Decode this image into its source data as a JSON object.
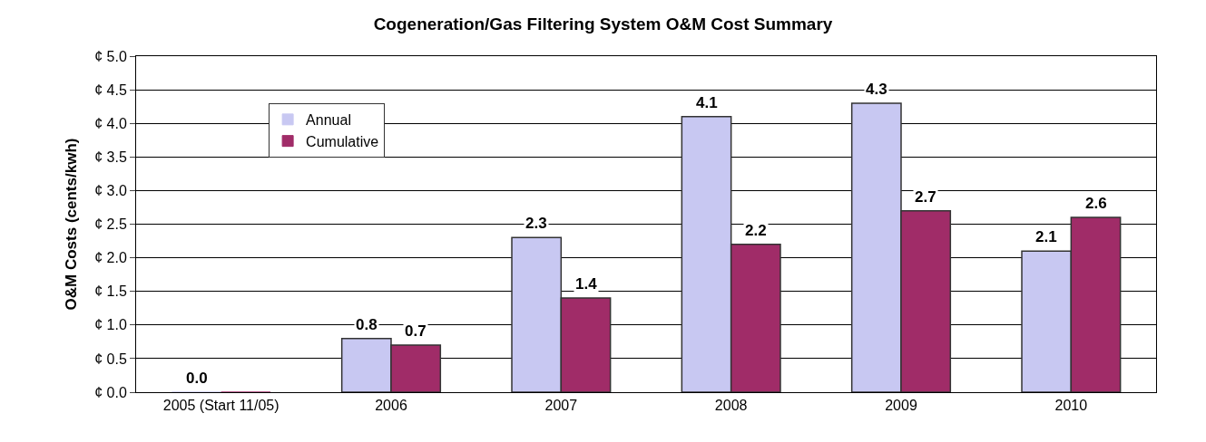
{
  "chart_data": {
    "type": "bar",
    "title": "Cogeneration/Gas Filtering System O&M Cost Summary",
    "ylabel": "O&M Costs (cents/kwh)",
    "categories": [
      "2005 (Start 11/05)",
      "2006",
      "2007",
      "2008",
      "2009",
      "2010"
    ],
    "series": [
      {
        "name": "Annual",
        "color": "#c8c8f2",
        "values": [
          0.0,
          0.8,
          2.3,
          4.1,
          4.3,
          2.1
        ],
        "value_labels": [
          "0.0",
          "0.8",
          "2.3",
          "4.1",
          "4.3",
          "2.1"
        ]
      },
      {
        "name": "Cumulative",
        "color": "#a02c68",
        "values": [
          0.0,
          0.7,
          1.4,
          2.2,
          2.7,
          2.6
        ],
        "value_labels": [
          null,
          "0.7",
          "1.4",
          "2.2",
          "2.7",
          "2.6"
        ]
      }
    ],
    "ylim": [
      0,
      5
    ],
    "yticks": [
      {
        "value": 0,
        "label": "¢ 0.0"
      },
      {
        "value": 0.5,
        "label": "¢ 0.5"
      },
      {
        "value": 1,
        "label": "¢ 1.0"
      },
      {
        "value": 1.5,
        "label": "¢ 1.5"
      },
      {
        "value": 2,
        "label": "¢ 2.0"
      },
      {
        "value": 2.5,
        "label": "¢ 2.5"
      },
      {
        "value": 3,
        "label": "¢ 3.0"
      },
      {
        "value": 3.5,
        "label": "¢ 3.5"
      },
      {
        "value": 4,
        "label": "¢ 4.0"
      },
      {
        "value": 4.5,
        "label": "¢ 4.5"
      },
      {
        "value": 5,
        "label": "¢ 5.0"
      }
    ],
    "grid": "y",
    "legend": "top left"
  }
}
